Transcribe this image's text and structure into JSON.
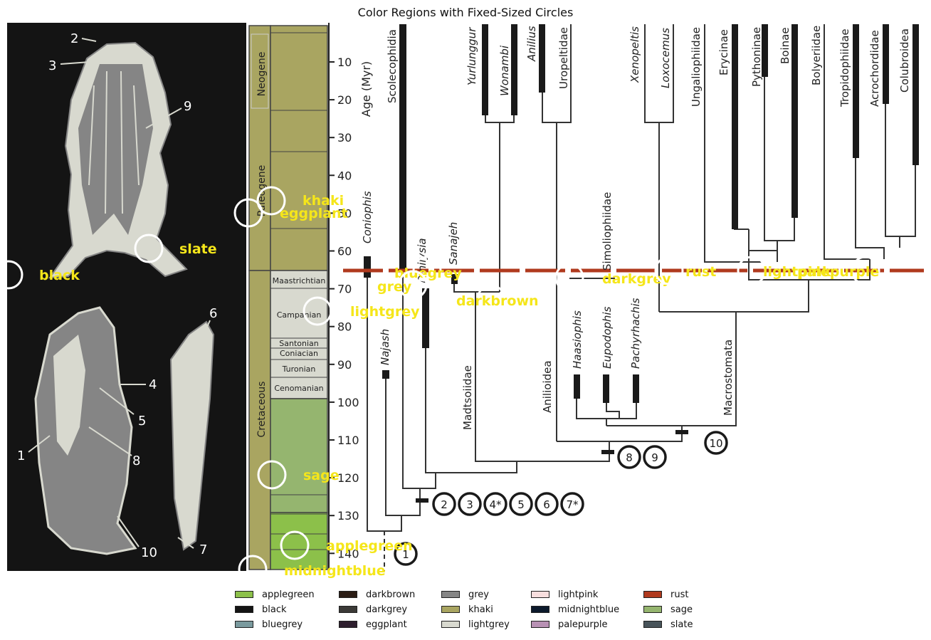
{
  "title": "Color Regions with Fixed-Sized Circles",
  "skull_numbers": [
    "2",
    "3",
    "9",
    "6",
    "4",
    "5",
    "1",
    "8",
    "10",
    "7"
  ],
  "timescale": {
    "eras": [
      "Neogene",
      "Paleogene",
      "Cretaceous"
    ],
    "stages": [
      "Maastrichtian",
      "Campanian",
      "Santonian",
      "Coniacian",
      "Turonian",
      "Cenomanian"
    ],
    "axis_title": "Age (Myr)",
    "ticks": [
      "10",
      "20",
      "30",
      "40",
      "50",
      "60",
      "70",
      "80",
      "90",
      "100",
      "110",
      "120",
      "130",
      "140"
    ]
  },
  "taxa": {
    "top": [
      "Scolecophidia",
      "Yurlunggur",
      "Wonambi",
      "Anilius",
      "Uropeltidae",
      "Xenopeltis",
      "Loxocemus",
      "Ungaliophiidae",
      "Erycinae",
      "Pythoninae",
      "Boinae",
      "Bolyeriidae",
      "Tropidophiidae",
      "Acrochordidae",
      "Colubroidea"
    ],
    "mid": [
      "Coniophis",
      "Dinilysia",
      "Sanajeh",
      "Simoliophiidae",
      "Najash",
      "Madtsoiidae",
      "Anilioidea",
      "Haasiophis",
      "Eupodophis",
      "Pachyrhachis",
      "Macrostomata"
    ]
  },
  "nodes": [
    "1",
    "2",
    "3",
    "4*",
    "5",
    "6",
    "7*",
    "8",
    "9",
    "10"
  ],
  "regions": [
    {
      "name": "khaki",
      "color": "#a9a561"
    },
    {
      "name": "eggplant",
      "color": "#2e1f2e"
    },
    {
      "name": "slate",
      "color": "#48545a"
    },
    {
      "name": "black",
      "color": "#141414"
    },
    {
      "name": "bluegrey",
      "color": "#7a9a9e"
    },
    {
      "name": "grey",
      "color": "#858585"
    },
    {
      "name": "lightgrey",
      "color": "#d8d9cf"
    },
    {
      "name": "darkbrown",
      "color": "#2b1d15"
    },
    {
      "name": "darkgrey",
      "color": "#3b3a37"
    },
    {
      "name": "rust",
      "color": "#b03a1e"
    },
    {
      "name": "lightpink",
      "color": "#f7dede"
    },
    {
      "name": "palepurple",
      "color": "#b891b4"
    },
    {
      "name": "sage",
      "color": "#95b56f"
    },
    {
      "name": "applegreen",
      "color": "#8cc04a"
    },
    {
      "name": "midnightblue",
      "color": "#0c1a2c"
    }
  ],
  "legend": [
    {
      "name": "applegreen",
      "color": "#8cc04a"
    },
    {
      "name": "black",
      "color": "#141414"
    },
    {
      "name": "bluegrey",
      "color": "#7a9a9e"
    },
    {
      "name": "darkbrown",
      "color": "#2b1d15"
    },
    {
      "name": "darkgrey",
      "color": "#3b3a37"
    },
    {
      "name": "eggplant",
      "color": "#2e1f2e"
    },
    {
      "name": "grey",
      "color": "#858585"
    },
    {
      "name": "khaki",
      "color": "#a9a561"
    },
    {
      "name": "lightgrey",
      "color": "#d8d9cf"
    },
    {
      "name": "lightpink",
      "color": "#f7dede"
    },
    {
      "name": "midnightblue",
      "color": "#0c1a2c"
    },
    {
      "name": "palepurple",
      "color": "#b891b4"
    },
    {
      "name": "rust",
      "color": "#b03a1e"
    },
    {
      "name": "sage",
      "color": "#95b56f"
    },
    {
      "name": "slate",
      "color": "#48545a"
    }
  ]
}
